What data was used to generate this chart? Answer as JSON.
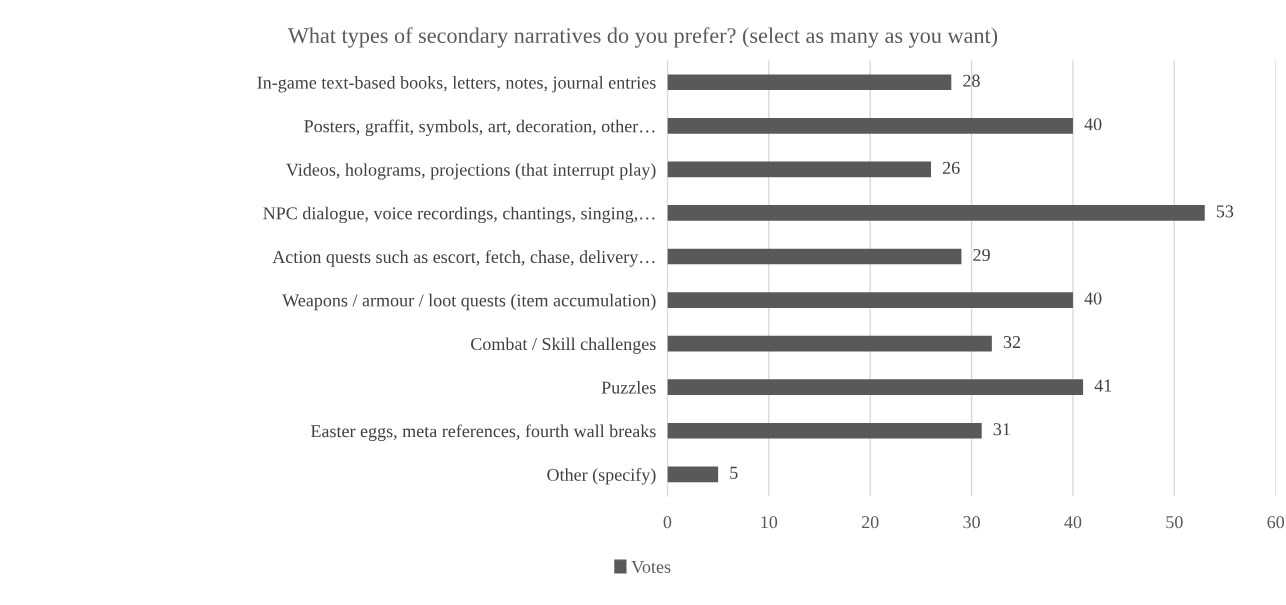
{
  "chart_data": {
    "type": "bar",
    "orientation": "horizontal",
    "title": "What types of secondary narratives do you prefer? (select as many as you want)",
    "categories": [
      "In-game text-based books, letters, notes, journal entries",
      "Posters, graffit, symbols, art, decoration, other…",
      "Videos, holograms, projections (that interrupt play)",
      "NPC dialogue, voice recordings, chantings, singing,…",
      "Action quests such as escort, fetch, chase, delivery…",
      "Weapons / armour / loot quests (item accumulation)",
      "Combat / Skill challenges",
      "Puzzles",
      "Easter eggs, meta references, fourth wall breaks",
      "Other (specify)"
    ],
    "series": [
      {
        "name": "Votes",
        "color": "#595959",
        "values": [
          28,
          40,
          26,
          53,
          29,
          40,
          32,
          41,
          31,
          5
        ]
      }
    ],
    "xlim": [
      0,
      60
    ],
    "xticks": [
      0,
      10,
      20,
      30,
      40,
      50,
      60
    ],
    "grid": "x",
    "legend": "bottom",
    "data_labels": true
  }
}
